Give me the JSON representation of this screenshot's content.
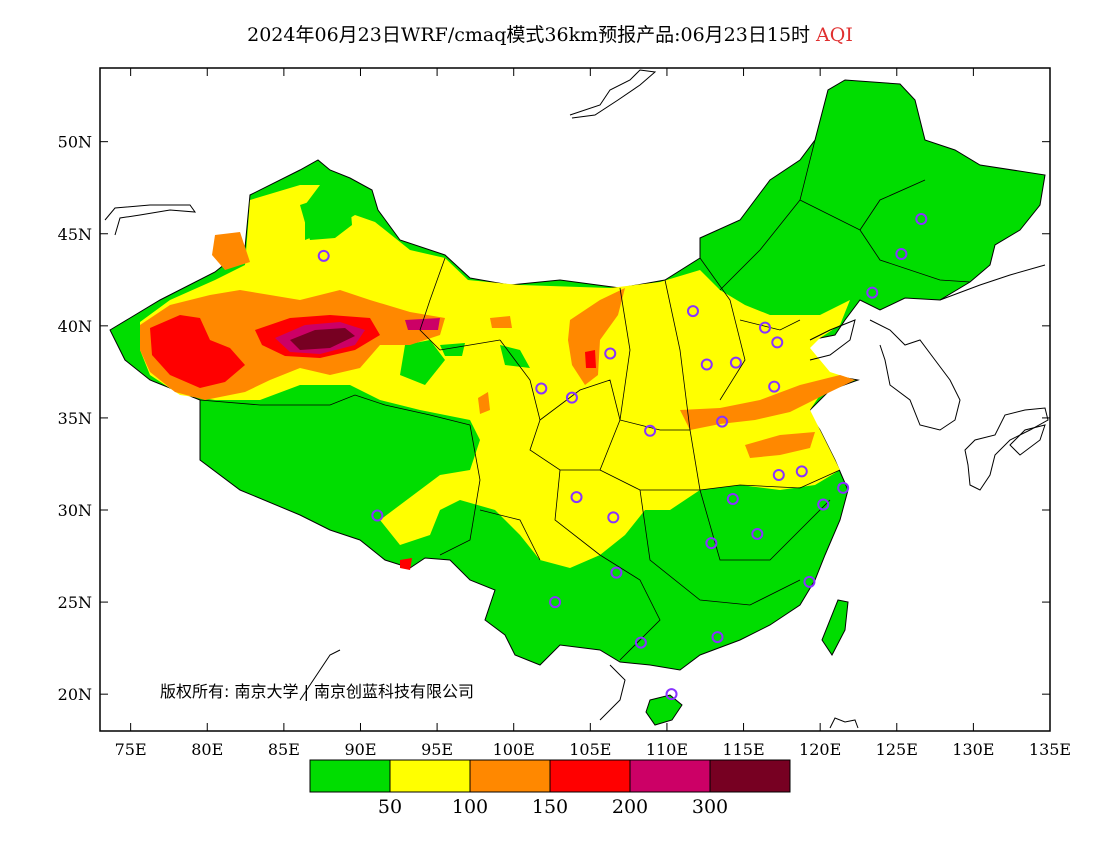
{
  "map": {
    "title": "2024年06月23日WRF/cmaq模式36km预报产品:06月23日15时",
    "pollutant": "AQI",
    "copyright": "版权所有: 南京大学 | 南京创蓝科技有限公司",
    "lon_ticks": [
      "75E",
      "80E",
      "85E",
      "90E",
      "95E",
      "100E",
      "105E",
      "110E",
      "115E",
      "120E",
      "125E",
      "130E",
      "135E"
    ],
    "lat_ticks": [
      "20N",
      "25N",
      "30N",
      "35N",
      "40N",
      "45N",
      "50N"
    ],
    "extent": {
      "lon": [
        73,
        135
      ],
      "lat": [
        18,
        54
      ]
    }
  },
  "legend": {
    "colors": [
      "#00dd00",
      "#ffff00",
      "#ff8800",
      "#ff0000",
      "#cc0066",
      "#770022"
    ],
    "labels": [
      "50",
      "100",
      "150",
      "200",
      "300"
    ]
  },
  "stations": [
    [
      87.6,
      43.8
    ],
    [
      91.1,
      29.7
    ],
    [
      101.8,
      36.6
    ],
    [
      103.8,
      36.1
    ],
    [
      106.3,
      38.5
    ],
    [
      111.7,
      40.8
    ],
    [
      112.6,
      37.9
    ],
    [
      114.5,
      38.0
    ],
    [
      116.4,
      39.9
    ],
    [
      117.2,
      39.1
    ],
    [
      117.0,
      36.7
    ],
    [
      113.6,
      34.8
    ],
    [
      108.9,
      34.3
    ],
    [
      104.1,
      30.7
    ],
    [
      106.5,
      29.6
    ],
    [
      102.7,
      25.0
    ],
    [
      106.7,
      26.6
    ],
    [
      112.9,
      28.2
    ],
    [
      115.9,
      28.7
    ],
    [
      114.3,
      30.6
    ],
    [
      117.3,
      31.9
    ],
    [
      118.8,
      32.1
    ],
    [
      120.2,
      30.3
    ],
    [
      121.5,
      31.2
    ],
    [
      119.3,
      26.1
    ],
    [
      113.3,
      23.1
    ],
    [
      108.3,
      22.8
    ],
    [
      110.3,
      20.0
    ],
    [
      123.4,
      41.8
    ],
    [
      125.3,
      43.9
    ],
    [
      126.6,
      45.8
    ]
  ]
}
